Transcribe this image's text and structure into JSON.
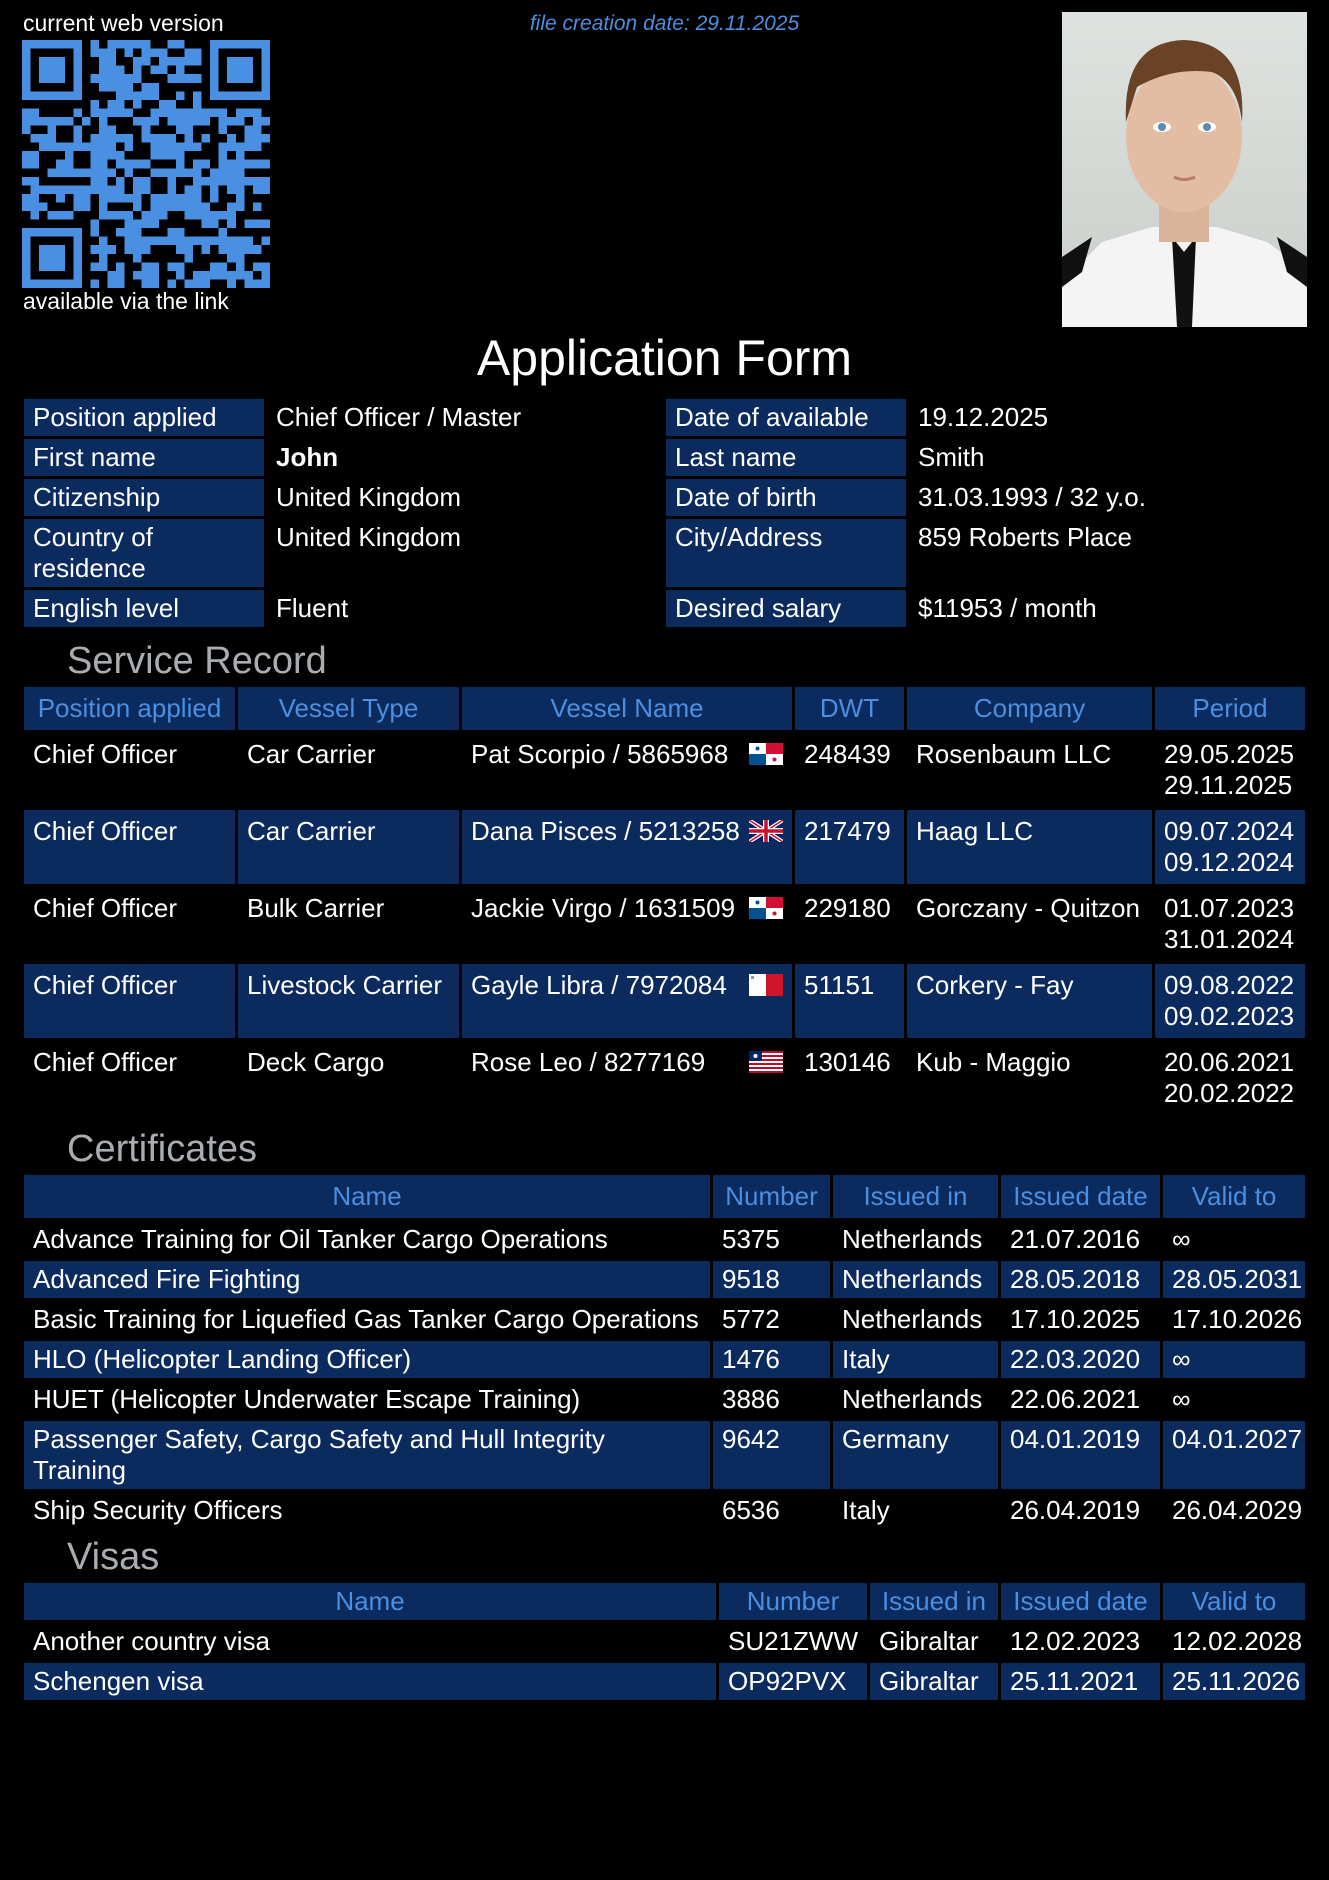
{
  "header": {
    "qr_top_caption": "current web version",
    "qr_bottom_caption": "available via the link",
    "file_date": "file creation date: 29.11.2025",
    "qr_color": "#4a90e2"
  },
  "title": "Application Form",
  "info": [
    {
      "l1": "Position applied",
      "v1": "Chief Officer / Master",
      "l2": "Date of available",
      "v2": "19.12.2025"
    },
    {
      "l1": "First name",
      "v1": "John",
      "l2": "Last name",
      "v2": "Smith"
    },
    {
      "l1": "Citizenship",
      "v1": "United Kingdom",
      "l2": "Date of birth",
      "v2": "31.03.1993 / 32 y.o."
    },
    {
      "l1": "Country of residence",
      "v1": "United Kingdom",
      "l2": "City/Address",
      "v2": "859 Roberts Place"
    },
    {
      "l1": "English level",
      "v1": "Fluent",
      "l2": "Desired salary",
      "v2": "$11953 / month"
    }
  ],
  "service": {
    "heading": "Service Record",
    "columns": [
      "Position applied",
      "Vessel Type",
      "Vessel Name",
      "DWT",
      "Company",
      "Period"
    ],
    "rows": [
      {
        "position": "Chief Officer",
        "type": "Car Carrier",
        "name": "Pat Scorpio / 5865968",
        "flag": "panama",
        "dwt": "248439",
        "company": "Rosenbaum LLC",
        "from": "29.05.2025",
        "to": "29.11.2025"
      },
      {
        "position": "Chief Officer",
        "type": "Car Carrier",
        "name": "Dana Pisces / 5213258",
        "flag": "uk",
        "dwt": "217479",
        "company": "Haag LLC",
        "from": "09.07.2024",
        "to": "09.12.2024"
      },
      {
        "position": "Chief Officer",
        "type": "Bulk Carrier",
        "name": "Jackie Virgo / 1631509",
        "flag": "panama",
        "dwt": "229180",
        "company": "Gorczany - Quitzon",
        "from": "01.07.2023",
        "to": "31.01.2024"
      },
      {
        "position": "Chief Officer",
        "type": "Livestock Carrier",
        "name": "Gayle Libra / 7972084",
        "flag": "malta",
        "dwt": "51151",
        "company": "Corkery - Fay",
        "from": "09.08.2022",
        "to": "09.02.2023"
      },
      {
        "position": "Chief Officer",
        "type": "Deck Cargo",
        "name": "Rose Leo / 8277169",
        "flag": "liberia",
        "dwt": "130146",
        "company": "Kub - Maggio",
        "from": "20.06.2021",
        "to": "20.02.2022"
      }
    ]
  },
  "certificates": {
    "heading": "Certificates",
    "columns": [
      "Name",
      "Number",
      "Issued in",
      "Issued date",
      "Valid to"
    ],
    "rows": [
      [
        "Advance Training for Oil Tanker Cargo Operations",
        "5375",
        "Netherlands",
        "21.07.2016",
        "∞"
      ],
      [
        "Advanced Fire Fighting",
        "9518",
        "Netherlands",
        "28.05.2018",
        "28.05.2031"
      ],
      [
        "Basic Training for Liquefied Gas Tanker Cargo Operations",
        "5772",
        "Netherlands",
        "17.10.2025",
        "17.10.2026"
      ],
      [
        "HLO (Helicopter Landing Officer)",
        "1476",
        "Italy",
        "22.03.2020",
        "∞"
      ],
      [
        "HUET (Helicopter Underwater Escape Training)",
        "3886",
        "Netherlands",
        "22.06.2021",
        "∞"
      ],
      [
        "Passenger Safety, Cargo Safety and Hull Integrity Training",
        "9642",
        "Germany",
        "04.01.2019",
        "04.01.2027"
      ],
      [
        "Ship Security Officers",
        "6536",
        "Italy",
        "26.04.2019",
        "26.04.2029"
      ]
    ]
  },
  "visas": {
    "heading": "Visas",
    "columns": [
      "Name",
      "Number",
      "Issued in",
      "Issued date",
      "Valid to"
    ],
    "rows": [
      [
        "Another country visa",
        "SU21ZWW",
        "Gibraltar",
        "12.02.2023",
        "12.02.2028"
      ],
      [
        "Schengen visa",
        "OP92PVX",
        "Gibraltar",
        "25.11.2021",
        "25.11.2026"
      ]
    ]
  }
}
